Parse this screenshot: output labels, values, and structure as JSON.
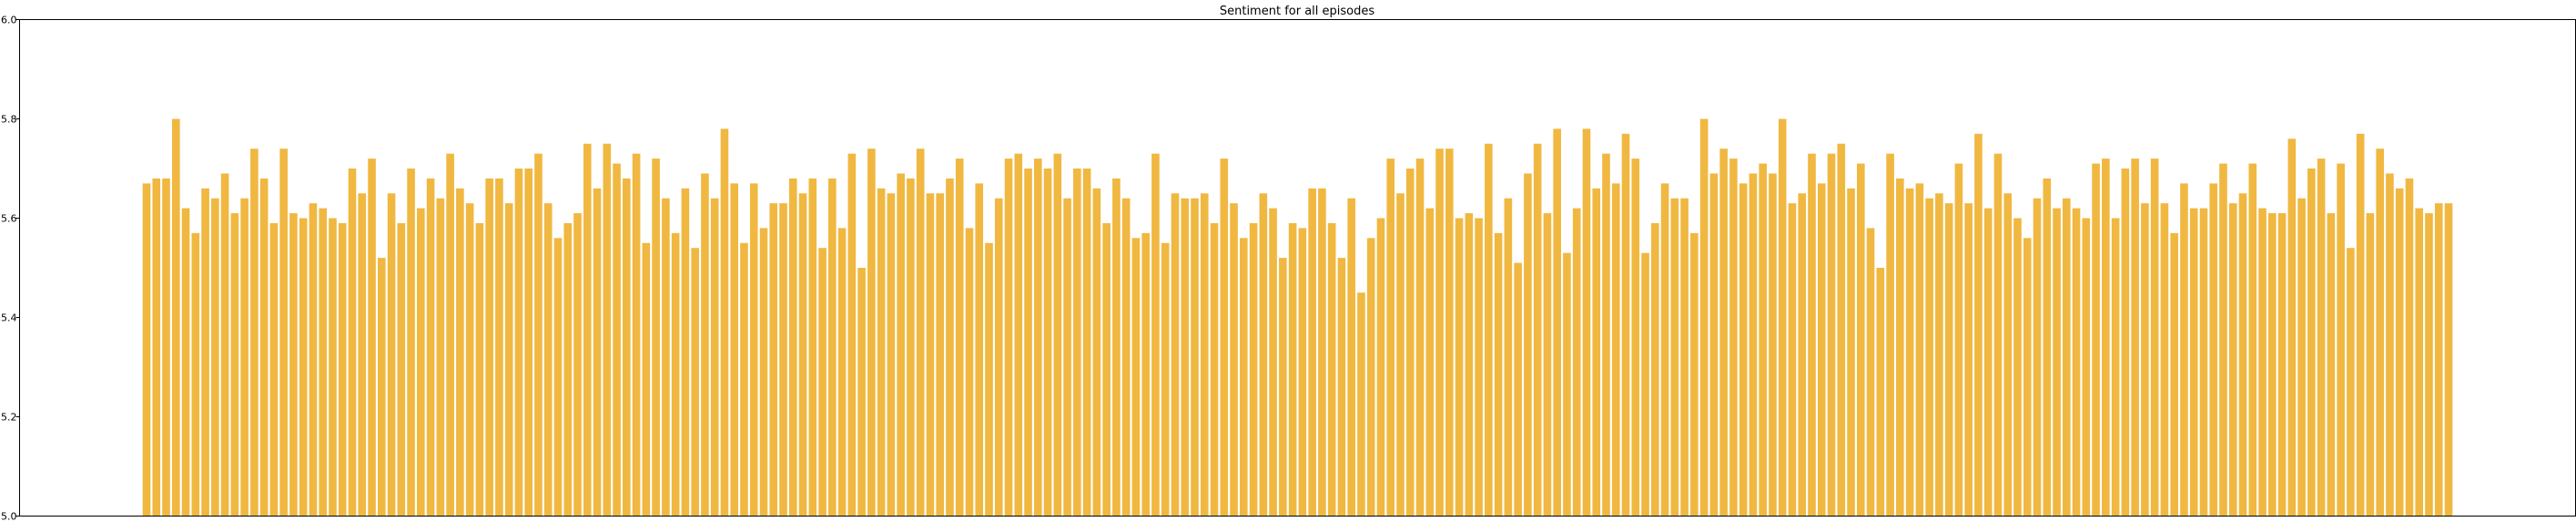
{
  "chart_data": {
    "type": "bar",
    "title": "Sentiment for all episodes",
    "xlabel": "",
    "ylabel": "",
    "ylim": [
      5.0,
      6.0
    ],
    "yticks": [
      "5.0",
      "5.2",
      "5.4",
      "5.6",
      "5.8",
      "6.0"
    ],
    "bar_color": "#f0b841",
    "grid": false,
    "show_x_tick_labels": false,
    "values": [
      5.67,
      5.68,
      5.68,
      5.8,
      5.62,
      5.57,
      5.66,
      5.64,
      5.69,
      5.61,
      5.64,
      5.74,
      5.68,
      5.59,
      5.74,
      5.61,
      5.6,
      5.63,
      5.62,
      5.6,
      5.59,
      5.7,
      5.65,
      5.72,
      5.52,
      5.65,
      5.59,
      5.7,
      5.62,
      5.68,
      5.64,
      5.73,
      5.66,
      5.63,
      5.59,
      5.68,
      5.68,
      5.63,
      5.7,
      5.7,
      5.73,
      5.63,
      5.56,
      5.59,
      5.61,
      5.75,
      5.66,
      5.75,
      5.71,
      5.68,
      5.73,
      5.55,
      5.72,
      5.64,
      5.57,
      5.66,
      5.54,
      5.69,
      5.64,
      5.78,
      5.67,
      5.55,
      5.67,
      5.58,
      5.63,
      5.63,
      5.68,
      5.65,
      5.68,
      5.54,
      5.68,
      5.58,
      5.73,
      5.5,
      5.74,
      5.66,
      5.65,
      5.69,
      5.68,
      5.74,
      5.65,
      5.65,
      5.68,
      5.72,
      5.58,
      5.67,
      5.55,
      5.64,
      5.72,
      5.73,
      5.7,
      5.72,
      5.7,
      5.73,
      5.64,
      5.7,
      5.7,
      5.66,
      5.59,
      5.68,
      5.64,
      5.56,
      5.57,
      5.73,
      5.55,
      5.65,
      5.64,
      5.64,
      5.65,
      5.59,
      5.72,
      5.63,
      5.56,
      5.59,
      5.65,
      5.62,
      5.52,
      5.59,
      5.58,
      5.66,
      5.66,
      5.59,
      5.52,
      5.64,
      5.45,
      5.56,
      5.6,
      5.72,
      5.65,
      5.7,
      5.72,
      5.62,
      5.74,
      5.74,
      5.6,
      5.61,
      5.6,
      5.75,
      5.57,
      5.64,
      5.51,
      5.69,
      5.75,
      5.61,
      5.78,
      5.53,
      5.62,
      5.78,
      5.66,
      5.73,
      5.67,
      5.77,
      5.72,
      5.53,
      5.59,
      5.67,
      5.64,
      5.64,
      5.57,
      5.8,
      5.69,
      5.74,
      5.72,
      5.67,
      5.69,
      5.71,
      5.69,
      5.8,
      5.63,
      5.65,
      5.73,
      5.67,
      5.73,
      5.75,
      5.66,
      5.71,
      5.58,
      5.5,
      5.73,
      5.68,
      5.66,
      5.67,
      5.64,
      5.65,
      5.63,
      5.71,
      5.63,
      5.77,
      5.62,
      5.73,
      5.65,
      5.6,
      5.56,
      5.64,
      5.68,
      5.62,
      5.64,
      5.62,
      5.6,
      5.71,
      5.72,
      5.6,
      5.7,
      5.72,
      5.63,
      5.72,
      5.63,
      5.57,
      5.67,
      5.62,
      5.62,
      5.67,
      5.71,
      5.63,
      5.65,
      5.71,
      5.62,
      5.61,
      5.61,
      5.76,
      5.64,
      5.7,
      5.72,
      5.61,
      5.71,
      5.54,
      5.77,
      5.61,
      5.74,
      5.69,
      5.66,
      5.68,
      5.62,
      5.61,
      5.63,
      5.63
    ]
  }
}
